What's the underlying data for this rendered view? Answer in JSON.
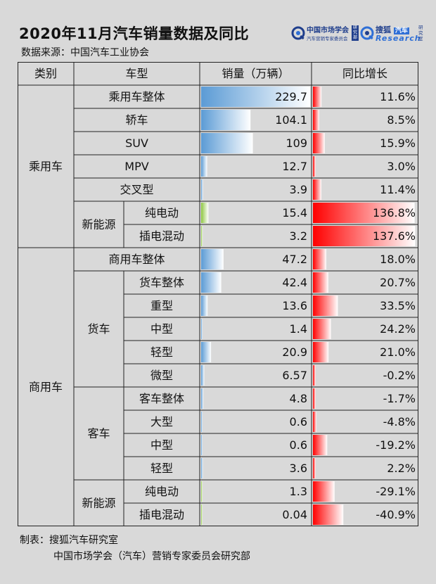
{
  "title": "2020年11月汽车销量数据及同比",
  "subtitle": "数据来源：中国汽车工业协会",
  "logos": {
    "cmsa_name": "中国市场学会",
    "cmsa_sub": "汽车营销专家委员会",
    "cmsa_badge": "研究部",
    "sohu_name": "搜狐",
    "sohu_tag": "汽车",
    "sohu_en": "Research",
    "sohu_side": "研究室"
  },
  "headers": {
    "category": "类别",
    "model": "车型",
    "sales": "销量（万辆）",
    "yoy": "同比增长"
  },
  "groups": {
    "passenger": "乘用车",
    "commercial": "商用车",
    "nev": "新能源",
    "truck": "货车",
    "bus": "客车"
  },
  "footer": {
    "made_by": "制表：搜狐汽车研究室",
    "org": "中国市场学会（汽车）营销专家委员会研究部"
  },
  "colors": {
    "blue_bar": "#5b9bd5",
    "green_bar": "#8cc63f",
    "red_bar": "#ff0000",
    "background": "#d9d9d9"
  },
  "chart_data": {
    "type": "table",
    "columns": [
      "类别",
      "车型",
      "销量（万辆）",
      "同比增长"
    ],
    "rows": [
      {
        "category": "乘用车",
        "subgroup": "",
        "model": "乘用车整体",
        "sales": 229.7,
        "sales_label": "229.7",
        "yoy": 11.6,
        "yoy_label": "11.6%",
        "bar": "blue"
      },
      {
        "category": "乘用车",
        "subgroup": "",
        "model": "轿车",
        "sales": 104.1,
        "sales_label": "104.1",
        "yoy": 8.5,
        "yoy_label": "8.5%",
        "bar": "blue"
      },
      {
        "category": "乘用车",
        "subgroup": "",
        "model": "SUV",
        "sales": 109,
        "sales_label": "109",
        "yoy": 15.9,
        "yoy_label": "15.9%",
        "bar": "blue"
      },
      {
        "category": "乘用车",
        "subgroup": "",
        "model": "MPV",
        "sales": 12.7,
        "sales_label": "12.7",
        "yoy": 3.0,
        "yoy_label": "3.0%",
        "bar": "blue"
      },
      {
        "category": "乘用车",
        "subgroup": "",
        "model": "交叉型",
        "sales": 3.9,
        "sales_label": "3.9",
        "yoy": 11.4,
        "yoy_label": "11.4%",
        "bar": "blue"
      },
      {
        "category": "乘用车",
        "subgroup": "新能源",
        "model": "纯电动",
        "sales": 15.4,
        "sales_label": "15.4",
        "yoy": 136.8,
        "yoy_label": "136.8%",
        "bar": "green"
      },
      {
        "category": "乘用车",
        "subgroup": "新能源",
        "model": "插电混动",
        "sales": 3.2,
        "sales_label": "3.2",
        "yoy": 137.6,
        "yoy_label": "137.6%",
        "bar": "green"
      },
      {
        "category": "商用车",
        "subgroup": "",
        "model": "商用车整体",
        "sales": 47.2,
        "sales_label": "47.2",
        "yoy": 18.0,
        "yoy_label": "18.0%",
        "bar": "blue"
      },
      {
        "category": "商用车",
        "subgroup": "货车",
        "model": "货车整体",
        "sales": 42.4,
        "sales_label": "42.4",
        "yoy": 20.7,
        "yoy_label": "20.7%",
        "bar": "blue"
      },
      {
        "category": "商用车",
        "subgroup": "货车",
        "model": "重型",
        "sales": 13.6,
        "sales_label": "13.6",
        "yoy": 33.5,
        "yoy_label": "33.5%",
        "bar": "blue"
      },
      {
        "category": "商用车",
        "subgroup": "货车",
        "model": "中型",
        "sales": 1.4,
        "sales_label": "1.4",
        "yoy": 24.2,
        "yoy_label": "24.2%",
        "bar": "blue"
      },
      {
        "category": "商用车",
        "subgroup": "货车",
        "model": "轻型",
        "sales": 20.9,
        "sales_label": "20.9",
        "yoy": 21.0,
        "yoy_label": "21.0%",
        "bar": "blue"
      },
      {
        "category": "商用车",
        "subgroup": "货车",
        "model": "微型",
        "sales": 6.57,
        "sales_label": "6.57",
        "yoy": -0.2,
        "yoy_label": "-0.2%",
        "bar": "blue"
      },
      {
        "category": "商用车",
        "subgroup": "客车",
        "model": "客车整体",
        "sales": 4.8,
        "sales_label": "4.8",
        "yoy": -1.7,
        "yoy_label": "-1.7%",
        "bar": "blue"
      },
      {
        "category": "商用车",
        "subgroup": "客车",
        "model": "大型",
        "sales": 0.6,
        "sales_label": "0.6",
        "yoy": -4.8,
        "yoy_label": "-4.8%",
        "bar": "blue"
      },
      {
        "category": "商用车",
        "subgroup": "客车",
        "model": "中型",
        "sales": 0.6,
        "sales_label": "0.6",
        "yoy": -19.2,
        "yoy_label": "-19.2%",
        "bar": "blue"
      },
      {
        "category": "商用车",
        "subgroup": "客车",
        "model": "轻型",
        "sales": 3.6,
        "sales_label": "3.6",
        "yoy": 2.2,
        "yoy_label": "2.2%",
        "bar": "blue"
      },
      {
        "category": "商用车",
        "subgroup": "新能源",
        "model": "纯电动",
        "sales": 1.3,
        "sales_label": "1.3",
        "yoy": -29.1,
        "yoy_label": "-29.1%",
        "bar": "green"
      },
      {
        "category": "商用车",
        "subgroup": "新能源",
        "model": "插电混动",
        "sales": 0.04,
        "sales_label": "0.04",
        "yoy": -40.9,
        "yoy_label": "-40.9%",
        "bar": "green"
      }
    ]
  }
}
